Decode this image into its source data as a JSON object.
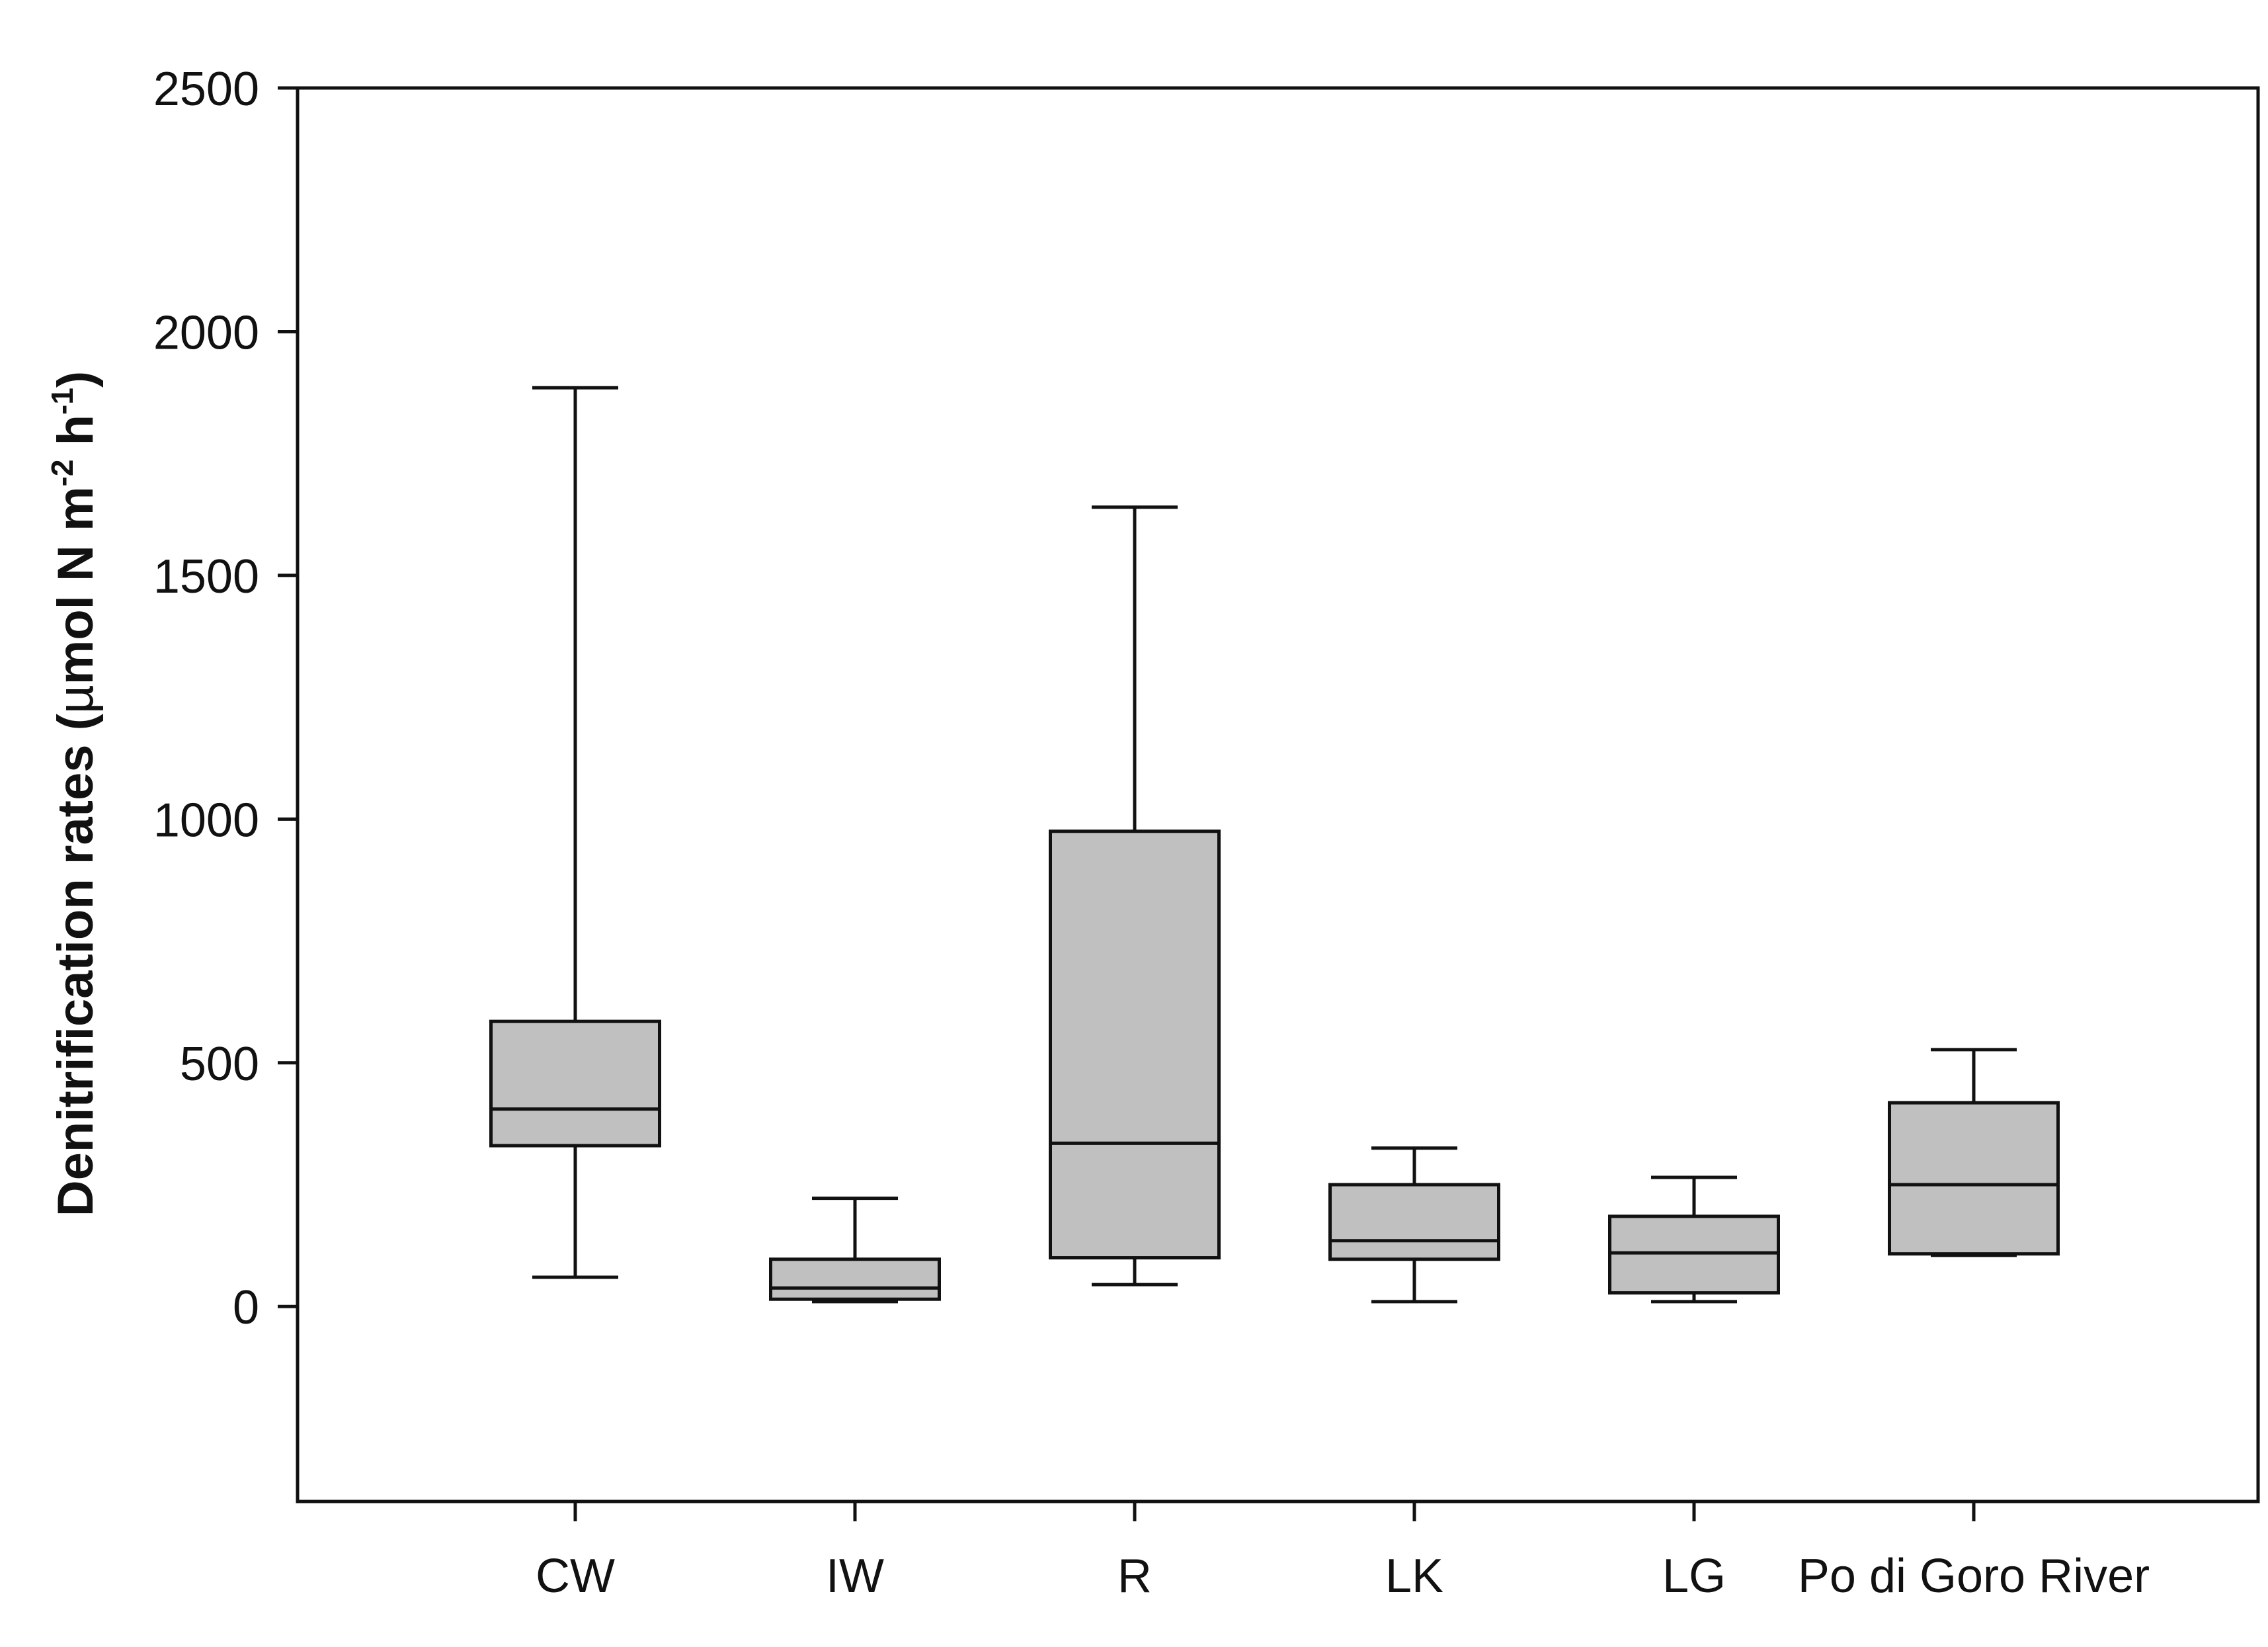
{
  "chart_data": {
    "type": "boxplot",
    "y_axis": {
      "label_main": "Denitrification rates (",
      "label_mu": "µ",
      "label_unit": "mol N m",
      "label_exp1": "-2",
      "label_h": " h",
      "label_exp2": "-1",
      "label_close": ")",
      "ylim": [
        -400,
        2500
      ],
      "ticks": [
        0,
        500,
        1000,
        1500,
        2000,
        2500
      ],
      "tick_labels": [
        "0",
        "500",
        "1000",
        "1500",
        "2000",
        "2500"
      ]
    },
    "x_axis": {
      "label": ""
    },
    "categories": [
      "CW",
      "IW",
      "R",
      "LK",
      "LG",
      "Po di Goro River"
    ],
    "boxes": [
      {
        "category": "CW",
        "min": 60,
        "q1": 330,
        "median": 405,
        "q3": 585,
        "max": 1885
      },
      {
        "category": "IW",
        "min": 10,
        "q1": 15,
        "median": 38,
        "q3": 97,
        "max": 222
      },
      {
        "category": "R",
        "min": 45,
        "q1": 100,
        "median": 335,
        "q3": 975,
        "max": 1640
      },
      {
        "category": "LK",
        "min": 10,
        "q1": 97,
        "median": 135,
        "q3": 250,
        "max": 325
      },
      {
        "category": "LG",
        "min": 10,
        "q1": 28,
        "median": 110,
        "q3": 185,
        "max": 265
      },
      {
        "category": "Po di Goro River",
        "min": 105,
        "q1": 108,
        "median": 250,
        "q3": 418,
        "max": 527
      }
    ],
    "box_fill": "#c0c0c0",
    "line_color": "#111111",
    "grid": false,
    "legend": "none"
  }
}
